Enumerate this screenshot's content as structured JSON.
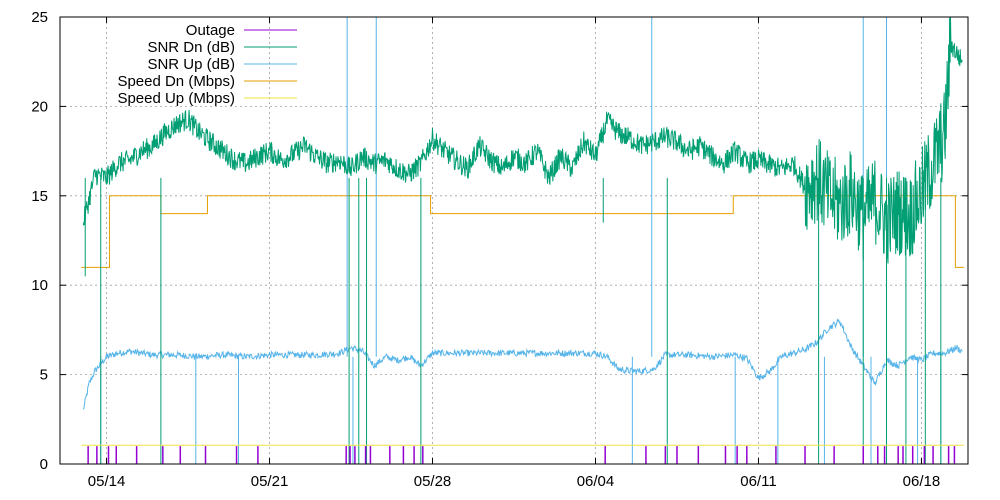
{
  "chart_data": {
    "type": "line",
    "title": "",
    "xlabel": "",
    "ylabel": "",
    "x_range": [
      "2024-05-12T00:00",
      "2024-06-20T00:00"
    ],
    "xticks": [
      {
        "date": "2024-05-14T00:00",
        "label": "05/14"
      },
      {
        "date": "2024-05-21T00:00",
        "label": "05/21"
      },
      {
        "date": "2024-05-28T00:00",
        "label": "05/28"
      },
      {
        "date": "2024-06-04T00:00",
        "label": "06/04"
      },
      {
        "date": "2024-06-11T00:00",
        "label": "06/11"
      },
      {
        "date": "2024-06-18T00:00",
        "label": "06/18"
      }
    ],
    "ylim": [
      0,
      25
    ],
    "yticks": [
      0,
      5,
      10,
      15,
      20,
      25
    ],
    "grid": true,
    "legend_position": "top-left",
    "series": [
      {
        "name": "Outage",
        "color": "#9400d3",
        "style": "impulse",
        "x": [
          "2024-05-13T05:00",
          "2024-05-13T14:00",
          "2024-05-14T02:00",
          "2024-05-14T10:00",
          "2024-05-15T07:00",
          "2024-05-16T10:00",
          "2024-05-17T04:00",
          "2024-05-18T06:00",
          "2024-05-19T14:00",
          "2024-05-20T12:00",
          "2024-05-24T07:00",
          "2024-05-24T11:00",
          "2024-05-24T16:00",
          "2024-05-25T03:00",
          "2024-05-25T08:00",
          "2024-05-26T04:00",
          "2024-05-26T18:00",
          "2024-05-27T05:00",
          "2024-05-27T14:00",
          "2024-06-04T10:00",
          "2024-06-06T04:00",
          "2024-06-07T00:00",
          "2024-06-07T12:00",
          "2024-06-08T10:00",
          "2024-06-09T14:00",
          "2024-06-10T02:00",
          "2024-06-10T12:00",
          "2024-06-11T18:00",
          "2024-06-13T00:00",
          "2024-06-14T06:00",
          "2024-06-15T12:00",
          "2024-06-16T03:00",
          "2024-06-16T10:00",
          "2024-06-17T00:00",
          "2024-06-17T05:00",
          "2024-06-17T15:00",
          "2024-06-18T03:00",
          "2024-06-18T12:00",
          "2024-06-19T04:00",
          "2024-06-19T10:00"
        ],
        "values": [
          1,
          1,
          1,
          1,
          1,
          1,
          1,
          1,
          1,
          1,
          1,
          1,
          1,
          1,
          1,
          1,
          1,
          1,
          1,
          1,
          1,
          1,
          1,
          1,
          1,
          1,
          1,
          1,
          1,
          1,
          1,
          1,
          1,
          1,
          1,
          1,
          1,
          1,
          1,
          1
        ]
      },
      {
        "name": "SNR Dn (dB)",
        "color": "#009e73",
        "style": "line",
        "x": [
          "2024-05-13T00:00",
          "2024-05-13T06:00",
          "2024-05-13T12:00",
          "2024-05-14T00:00",
          "2024-05-14T12:00",
          "2024-05-15T00:00",
          "2024-05-15T12:00",
          "2024-05-16T00:00",
          "2024-05-16T12:00",
          "2024-05-17T00:00",
          "2024-05-17T12:00",
          "2024-05-18T00:00",
          "2024-05-18T12:00",
          "2024-05-19T00:00",
          "2024-05-19T12:00",
          "2024-05-20T00:00",
          "2024-05-20T12:00",
          "2024-05-21T00:00",
          "2024-05-21T12:00",
          "2024-05-22T00:00",
          "2024-05-22T12:00",
          "2024-05-23T00:00",
          "2024-05-23T12:00",
          "2024-05-24T00:00",
          "2024-05-24T12:00",
          "2024-05-25T00:00",
          "2024-05-25T12:00",
          "2024-05-26T00:00",
          "2024-05-26T12:00",
          "2024-05-27T00:00",
          "2024-05-27T12:00",
          "2024-05-28T00:00",
          "2024-05-28T12:00",
          "2024-05-29T00:00",
          "2024-05-29T12:00",
          "2024-05-30T00:00",
          "2024-05-30T12:00",
          "2024-05-31T00:00",
          "2024-05-31T12:00",
          "2024-06-01T00:00",
          "2024-06-01T12:00",
          "2024-06-02T00:00",
          "2024-06-02T12:00",
          "2024-06-03T00:00",
          "2024-06-03T12:00",
          "2024-06-04T00:00",
          "2024-06-04T12:00",
          "2024-06-05T00:00",
          "2024-06-05T12:00",
          "2024-06-06T00:00",
          "2024-06-06T12:00",
          "2024-06-07T00:00",
          "2024-06-07T12:00",
          "2024-06-08T00:00",
          "2024-06-08T12:00",
          "2024-06-09T00:00",
          "2024-06-09T12:00",
          "2024-06-10T00:00",
          "2024-06-10T12:00",
          "2024-06-11T00:00",
          "2024-06-11T12:00",
          "2024-06-12T00:00",
          "2024-06-12T12:00",
          "2024-06-13T00:00",
          "2024-06-13T12:00",
          "2024-06-14T00:00",
          "2024-06-14T12:00",
          "2024-06-15T00:00",
          "2024-06-15T12:00",
          "2024-06-16T00:00",
          "2024-06-16T12:00",
          "2024-06-17T00:00",
          "2024-06-17T12:00",
          "2024-06-18T00:00",
          "2024-06-18T12:00",
          "2024-06-19T00:00",
          "2024-06-19T06:00",
          "2024-06-19T12:00",
          "2024-06-19T18:00"
        ],
        "values": [
          13.5,
          14.8,
          16.2,
          16.0,
          16.8,
          17.0,
          17.5,
          17.8,
          18.5,
          19.0,
          19.3,
          18.5,
          18.0,
          17.5,
          17.0,
          16.8,
          17.2,
          17.5,
          17.0,
          17.3,
          17.8,
          17.2,
          16.8,
          17.0,
          16.5,
          17.2,
          16.8,
          17.0,
          16.5,
          16.2,
          16.8,
          18.2,
          17.5,
          17.0,
          16.5,
          17.8,
          17.0,
          16.5,
          17.2,
          16.8,
          17.5,
          16.0,
          17.2,
          16.5,
          18.0,
          17.2,
          19.2,
          18.5,
          18.2,
          17.8,
          18.0,
          18.3,
          18.0,
          17.5,
          17.8,
          17.2,
          16.8,
          17.5,
          16.8,
          17.0,
          16.7,
          16.5,
          16.8,
          15.5,
          16.0,
          15.0,
          14.5,
          15.2,
          13.8,
          14.8,
          13.5,
          14.2,
          13.8,
          15.2,
          16.8,
          18.5,
          23.5,
          23.0,
          22.5
        ]
      },
      {
        "name": "SNR Up (dB)",
        "color": "#56b4e9",
        "style": "line",
        "x": [
          "2024-05-13T00:00",
          "2024-05-13T06:00",
          "2024-05-13T12:00",
          "2024-05-14T00:00",
          "2024-05-14T12:00",
          "2024-05-15T00:00",
          "2024-05-16T00:00",
          "2024-05-17T00:00",
          "2024-05-18T00:00",
          "2024-05-19T00:00",
          "2024-05-20T00:00",
          "2024-05-21T00:00",
          "2024-05-22T00:00",
          "2024-05-23T00:00",
          "2024-05-24T00:00",
          "2024-05-24T12:00",
          "2024-05-25T00:00",
          "2024-05-25T12:00",
          "2024-05-26T00:00",
          "2024-05-26T12:00",
          "2024-05-27T00:00",
          "2024-05-27T12:00",
          "2024-05-28T00:00",
          "2024-05-29T00:00",
          "2024-05-30T00:00",
          "2024-05-31T00:00",
          "2024-06-01T00:00",
          "2024-06-02T00:00",
          "2024-06-03T00:00",
          "2024-06-04T00:00",
          "2024-06-04T12:00",
          "2024-06-05T00:00",
          "2024-06-05T12:00",
          "2024-06-06T00:00",
          "2024-06-06T12:00",
          "2024-06-07T00:00",
          "2024-06-08T00:00",
          "2024-06-09T00:00",
          "2024-06-10T00:00",
          "2024-06-10T12:00",
          "2024-06-11T00:00",
          "2024-06-11T12:00",
          "2024-06-12T00:00",
          "2024-06-12T12:00",
          "2024-06-13T00:00",
          "2024-06-13T12:00",
          "2024-06-14T00:00",
          "2024-06-14T12:00",
          "2024-06-15T00:00",
          "2024-06-15T12:00",
          "2024-06-16T00:00",
          "2024-06-16T12:00",
          "2024-06-17T00:00",
          "2024-06-17T12:00",
          "2024-06-18T00:00",
          "2024-06-18T12:00",
          "2024-06-19T00:00",
          "2024-06-19T12:00",
          "2024-06-19T18:00"
        ],
        "values": [
          3.0,
          4.5,
          5.2,
          6.0,
          6.2,
          6.3,
          6.1,
          6.1,
          6.0,
          6.1,
          6.0,
          6.1,
          6.1,
          6.1,
          6.2,
          6.5,
          6.3,
          5.5,
          6.0,
          5.8,
          6.0,
          5.5,
          6.2,
          6.2,
          6.2,
          6.2,
          6.2,
          6.2,
          6.2,
          6.2,
          6.0,
          5.3,
          5.2,
          5.2,
          5.3,
          6.1,
          6.1,
          6.0,
          6.1,
          5.9,
          4.8,
          5.2,
          6.0,
          6.2,
          6.4,
          6.8,
          7.6,
          8.0,
          6.5,
          5.5,
          4.5,
          5.8,
          5.5,
          6.0,
          5.8,
          6.2,
          6.2,
          6.5,
          6.3
        ]
      },
      {
        "name": "Speed Dn (Mbps)",
        "color": "#e69f00",
        "style": "step",
        "x": [
          "2024-05-12T22:00",
          "2024-05-14T03:00",
          "2024-05-16T08:00",
          "2024-05-18T08:00",
          "2024-05-27T22:00",
          "2024-06-09T22:00",
          "2024-06-19T11:00",
          "2024-06-19T20:00"
        ],
        "values": [
          11,
          15,
          14,
          15,
          14,
          15,
          11,
          11
        ]
      },
      {
        "name": "Speed Up (Mbps)",
        "color": "#f0e442",
        "style": "line",
        "x": [
          "2024-05-12T22:00",
          "2024-06-19T20:00"
        ],
        "values": [
          1.05,
          1.05
        ]
      }
    ],
    "spikes": {
      "snr_dn_dips": [
        {
          "x": "2024-05-13T02:00",
          "value": 10.5
        },
        {
          "x": "2024-05-13T18:00",
          "value": 0.0
        },
        {
          "x": "2024-05-16T08:00",
          "value": 0.0
        },
        {
          "x": "2024-05-24T10:00",
          "value": 0.0
        },
        {
          "x": "2024-05-24T20:00",
          "value": 0.0
        },
        {
          "x": "2024-05-25T04:00",
          "value": 0.0
        },
        {
          "x": "2024-05-27T12:00",
          "value": 0.0
        },
        {
          "x": "2024-06-04T08:00",
          "value": 13.5
        },
        {
          "x": "2024-06-07T02:00",
          "value": 0.0
        },
        {
          "x": "2024-06-13T14:00",
          "value": 0.0
        },
        {
          "x": "2024-06-15T12:00",
          "value": 0.0
        },
        {
          "x": "2024-06-16T12:00",
          "value": 0.0
        },
        {
          "x": "2024-06-17T08:00",
          "value": 0.0
        },
        {
          "x": "2024-06-18T04:00",
          "value": 0.0
        },
        {
          "x": "2024-06-18T20:00",
          "value": 0.0
        }
      ],
      "snr_up_spikes": [
        {
          "x": "2024-05-24T08:00",
          "value": 25
        },
        {
          "x": "2024-05-25T14:00",
          "value": 25
        },
        {
          "x": "2024-06-06T10:00",
          "value": 25
        },
        {
          "x": "2024-06-15T12:00",
          "value": 25
        },
        {
          "x": "2024-06-16T12:00",
          "value": 25
        }
      ],
      "snr_up_dips": [
        {
          "x": "2024-05-13T18:00",
          "value": 0.0
        },
        {
          "x": "2024-05-17T20:00",
          "value": 0.0
        },
        {
          "x": "2024-05-19T16:00",
          "value": 0.0
        },
        {
          "x": "2024-05-24T14:00",
          "value": 0.0
        },
        {
          "x": "2024-06-05T14:00",
          "value": 0.0
        },
        {
          "x": "2024-06-10T00:00",
          "value": 0.0
        },
        {
          "x": "2024-06-11T20:00",
          "value": 0.0
        },
        {
          "x": "2024-06-13T20:00",
          "value": 0.0
        },
        {
          "x": "2024-06-15T20:00",
          "value": 0.0
        },
        {
          "x": "2024-06-17T20:00",
          "value": 0.0
        },
        {
          "x": "2024-06-18T20:00",
          "value": 0.0
        }
      ]
    },
    "noise_periods": {
      "snr_dn": {
        "from": "2024-06-13T00:00",
        "to": "2024-06-19T06:00",
        "amplitude": 2.5
      }
    }
  }
}
